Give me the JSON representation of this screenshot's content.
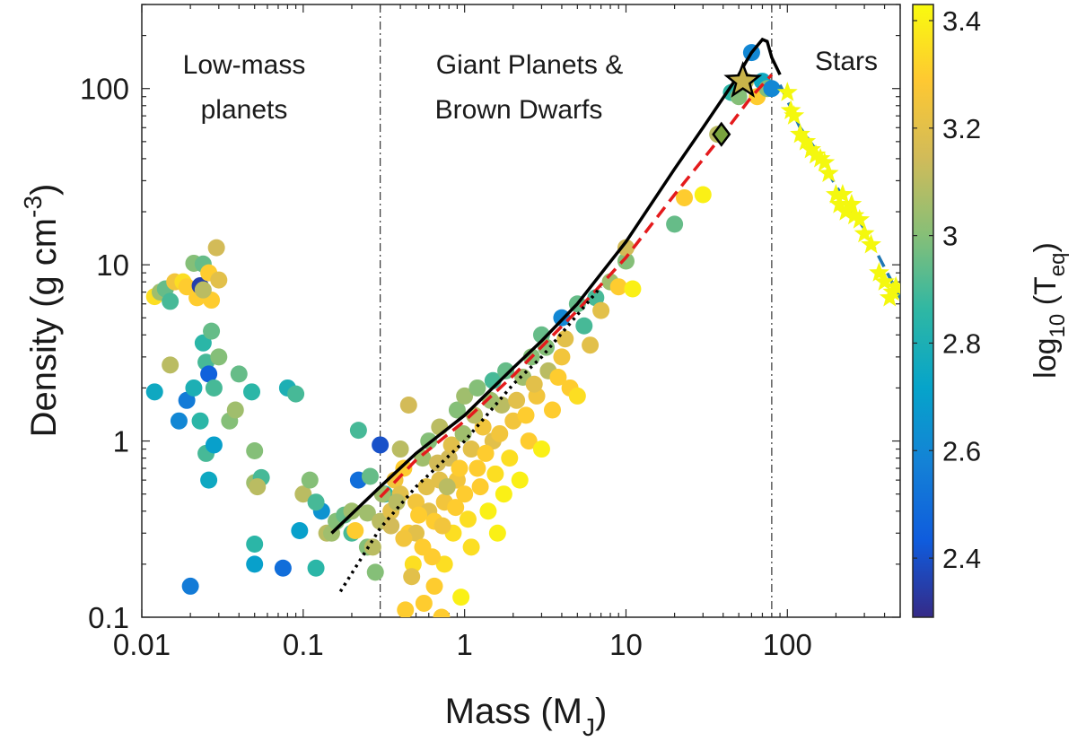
{
  "chart_data": {
    "type": "scatter",
    "xscale": "log",
    "yscale": "log",
    "xlabel_main": "Mass (M",
    "xlabel_sub": "J",
    "xlabel_close": ")",
    "ylabel_main": "Density (g cm",
    "ylabel_sup": "-3",
    "ylabel_close": ")",
    "xlim": [
      0.01,
      500
    ],
    "ylim": [
      0.1,
      300
    ],
    "x_ticks": [
      {
        "value": 0.01,
        "label": "0.01"
      },
      {
        "value": 0.1,
        "label": "0.1"
      },
      {
        "value": 1,
        "label": "1"
      },
      {
        "value": 10,
        "label": "10"
      },
      {
        "value": 100,
        "label": "100"
      }
    ],
    "y_ticks": [
      {
        "value": 0.1,
        "label": "0.1"
      },
      {
        "value": 1,
        "label": "1"
      },
      {
        "value": 10,
        "label": "10"
      },
      {
        "value": 100,
        "label": "100"
      }
    ],
    "colorbar": {
      "label_main": "log",
      "label_sub1": "10",
      "label_mid": " (T",
      "label_sub2": "eq",
      "label_close": ")",
      "range": [
        2.29,
        3.43
      ],
      "ticks": [
        {
          "value": 2.4,
          "label": "2.4"
        },
        {
          "value": 2.6,
          "label": "2.6"
        },
        {
          "value": 2.8,
          "label": "2.8"
        },
        {
          "value": 3.0,
          "label": "3"
        },
        {
          "value": 3.2,
          "label": "3.2"
        },
        {
          "value": 3.4,
          "label": "3.4"
        }
      ],
      "colormap": [
        "#352a87",
        "#0f5cdd",
        "#1481d6",
        "#06a4ca",
        "#2eb7a4",
        "#87bf77",
        "#d1bb59",
        "#fec832",
        "#f9fb0e"
      ]
    },
    "region_labels": {
      "low_mass_line1": "Low-mass",
      "low_mass_line2": "planets",
      "giant_line1": "Giant Planets &",
      "giant_line2": "Brown Dwarfs",
      "stars": "Stars"
    },
    "boundaries": [
      0.3,
      80
    ],
    "planets": [
      [
        0.012,
        6.6,
        3.35
      ],
      [
        0.013,
        7.0,
        3.05
      ],
      [
        0.014,
        7.3,
        2.95
      ],
      [
        0.015,
        6.2,
        2.9
      ],
      [
        0.016,
        8.0,
        3.25
      ],
      [
        0.018,
        8.0,
        3.35
      ],
      [
        0.019,
        7.5,
        3.3
      ],
      [
        0.021,
        10.2,
        3.0
      ],
      [
        0.022,
        6.5,
        3.3
      ],
      [
        0.023,
        7.6,
        2.35
      ],
      [
        0.024,
        10.1,
        2.95
      ],
      [
        0.026,
        9.0,
        3.3
      ],
      [
        0.027,
        6.3,
        3.3
      ],
      [
        0.029,
        12.5,
        3.15
      ],
      [
        0.03,
        8.2,
        3.2
      ],
      [
        0.024,
        7.2,
        3.1
      ],
      [
        0.012,
        1.9,
        2.75
      ],
      [
        0.015,
        2.7,
        3.1
      ],
      [
        0.017,
        1.3,
        2.6
      ],
      [
        0.019,
        1.7,
        2.55
      ],
      [
        0.021,
        2.0,
        2.8
      ],
      [
        0.023,
        1.3,
        2.85
      ],
      [
        0.024,
        3.6,
        2.85
      ],
      [
        0.025,
        2.8,
        2.9
      ],
      [
        0.026,
        2.4,
        2.45
      ],
      [
        0.027,
        4.2,
        2.95
      ],
      [
        0.028,
        2.0,
        2.9
      ],
      [
        0.03,
        3.0,
        3.0
      ],
      [
        0.035,
        1.3,
        3.0
      ],
      [
        0.038,
        1.5,
        3.05
      ],
      [
        0.04,
        2.4,
        2.95
      ],
      [
        0.048,
        1.9,
        2.85
      ],
      [
        0.025,
        0.85,
        2.9
      ],
      [
        0.028,
        0.95,
        2.7
      ],
      [
        0.026,
        0.6,
        2.75
      ],
      [
        0.05,
        0.58,
        3.05
      ],
      [
        0.05,
        0.88,
        3.0
      ],
      [
        0.055,
        0.62,
        2.9
      ],
      [
        0.052,
        0.55,
        3.1
      ],
      [
        0.05,
        0.26,
        2.85
      ],
      [
        0.05,
        0.2,
        2.7
      ],
      [
        0.075,
        0.19,
        2.5
      ],
      [
        0.08,
        2.0,
        2.8
      ],
      [
        0.09,
        1.85,
        2.9
      ],
      [
        0.095,
        0.31,
        2.7
      ],
      [
        0.1,
        0.5,
        3.1
      ],
      [
        0.11,
        0.6,
        3.0
      ],
      [
        0.12,
        0.19,
        2.85
      ],
      [
        0.13,
        0.4,
        2.65
      ],
      [
        0.12,
        0.45,
        2.9
      ],
      [
        0.02,
        0.15,
        2.55
      ],
      [
        0.14,
        0.3,
        3.1
      ],
      [
        0.15,
        0.3,
        3.05
      ],
      [
        0.16,
        0.35,
        3.0
      ],
      [
        0.18,
        0.38,
        2.95
      ],
      [
        0.2,
        0.4,
        3.05
      ],
      [
        0.2,
        0.3,
        2.9
      ],
      [
        0.22,
        0.6,
        2.5
      ],
      [
        0.22,
        1.15,
        2.9
      ],
      [
        0.25,
        0.25,
        3.0
      ],
      [
        0.25,
        0.39,
        3.05
      ],
      [
        0.26,
        0.63,
        2.95
      ],
      [
        0.27,
        0.25,
        3.1
      ],
      [
        0.28,
        0.18,
        3.0
      ],
      [
        0.3,
        0.95,
        2.4
      ],
      [
        0.32,
        0.5,
        2.85
      ],
      [
        0.3,
        0.35,
        3.1
      ],
      [
        0.35,
        0.4,
        3.2
      ],
      [
        0.37,
        0.6,
        3.25
      ],
      [
        0.4,
        0.5,
        3.2
      ],
      [
        0.4,
        0.9,
        3.1
      ],
      [
        0.42,
        0.7,
        3.3
      ],
      [
        0.45,
        1.6,
        3.15
      ],
      [
        0.45,
        0.3,
        3.3
      ],
      [
        0.48,
        0.2,
        3.35
      ],
      [
        0.5,
        0.45,
        3.25
      ],
      [
        0.5,
        0.3,
        3.2
      ],
      [
        0.55,
        0.25,
        3.3
      ],
      [
        0.55,
        0.8,
        3.05
      ],
      [
        0.6,
        1.0,
        3.0
      ],
      [
        0.6,
        0.4,
        3.2
      ],
      [
        0.65,
        0.35,
        3.3
      ],
      [
        0.65,
        0.15,
        3.3
      ],
      [
        0.7,
        0.6,
        3.2
      ],
      [
        0.7,
        1.2,
        3.1
      ],
      [
        0.75,
        0.2,
        3.35
      ],
      [
        0.75,
        0.45,
        3.25
      ],
      [
        0.8,
        0.8,
        3.15
      ],
      [
        0.85,
        0.3,
        3.35
      ],
      [
        0.9,
        1.5,
        3.0
      ],
      [
        0.9,
        0.6,
        3.25
      ],
      [
        0.95,
        0.13,
        3.4
      ],
      [
        1.0,
        0.5,
        3.3
      ],
      [
        1.0,
        1.8,
        3.05
      ],
      [
        1.1,
        0.9,
        3.2
      ],
      [
        1.1,
        0.25,
        3.35
      ],
      [
        1.2,
        2.0,
        3.0
      ],
      [
        1.2,
        0.7,
        3.3
      ],
      [
        1.3,
        1.2,
        3.25
      ],
      [
        1.4,
        0.4,
        3.4
      ],
      [
        1.5,
        2.2,
        2.9
      ],
      [
        1.5,
        1.0,
        3.2
      ],
      [
        1.6,
        0.3,
        3.4
      ],
      [
        1.7,
        1.6,
        3.1
      ],
      [
        1.8,
        2.5,
        2.95
      ],
      [
        1.9,
        0.8,
        3.35
      ],
      [
        2.0,
        1.3,
        3.25
      ],
      [
        2.2,
        0.6,
        3.4
      ],
      [
        2.3,
        2.3,
        3.05
      ],
      [
        2.5,
        1.0,
        3.3
      ],
      [
        2.6,
        3.0,
        3.0
      ],
      [
        2.8,
        1.8,
        3.25
      ],
      [
        3.0,
        0.9,
        3.4
      ],
      [
        3.0,
        4.0,
        2.95
      ],
      [
        3.3,
        2.5,
        3.1
      ],
      [
        3.5,
        1.5,
        3.3
      ],
      [
        4.0,
        5.0,
        2.6
      ],
      [
        4.0,
        3.0,
        3.25
      ],
      [
        4.5,
        2.0,
        3.3
      ],
      [
        5.0,
        1.8,
        3.35
      ],
      [
        5.0,
        6.0,
        2.95
      ],
      [
        5.5,
        4.5,
        2.9
      ],
      [
        6.0,
        3.5,
        3.2
      ],
      [
        0.31,
        0.5,
        3.05
      ],
      [
        0.35,
        0.33,
        3.15
      ],
      [
        0.38,
        0.45,
        3.1
      ],
      [
        0.42,
        0.28,
        3.25
      ],
      [
        0.43,
        0.11,
        3.3
      ],
      [
        0.47,
        0.17,
        3.2
      ],
      [
        0.52,
        0.38,
        3.3
      ],
      [
        0.58,
        0.55,
        3.2
      ],
      [
        0.63,
        0.22,
        3.3
      ],
      [
        0.68,
        0.75,
        3.15
      ],
      [
        0.73,
        0.33,
        3.25
      ],
      [
        0.78,
        0.55,
        3.1
      ],
      [
        0.83,
        0.95,
        3.2
      ],
      [
        0.88,
        0.42,
        3.3
      ],
      [
        0.93,
        0.7,
        3.3
      ],
      [
        0.98,
        1.1,
        3.05
      ],
      [
        1.05,
        0.36,
        3.35
      ],
      [
        1.15,
        1.4,
        3.1
      ],
      [
        1.25,
        0.55,
        3.3
      ],
      [
        1.35,
        0.85,
        3.3
      ],
      [
        1.45,
        1.7,
        3.05
      ],
      [
        1.55,
        0.65,
        3.35
      ],
      [
        1.65,
        1.1,
        3.25
      ],
      [
        1.75,
        0.5,
        3.4
      ],
      [
        2.1,
        1.7,
        3.2
      ],
      [
        2.4,
        1.4,
        3.3
      ],
      [
        2.7,
        2.1,
        3.2
      ],
      [
        3.2,
        3.4,
        3.0
      ],
      [
        3.8,
        2.3,
        3.3
      ],
      [
        4.2,
        3.8,
        3.2
      ],
      [
        0.72,
        0.1,
        3.3
      ],
      [
        0.56,
        0.12,
        3.3
      ],
      [
        6.5,
        6.5,
        2.9
      ],
      [
        7.0,
        5.5,
        3.2
      ],
      [
        8.0,
        8.0,
        3.05
      ],
      [
        9.0,
        7.5,
        3.3
      ],
      [
        10.0,
        10.5,
        3.0
      ],
      [
        10.0,
        12.5,
        3.15
      ],
      [
        11.0,
        7.3,
        3.4
      ],
      [
        20.0,
        17.0,
        2.95
      ],
      [
        23.0,
        24.0,
        3.3
      ],
      [
        30.0,
        25.0,
        3.4
      ],
      [
        37.0,
        55.0,
        3.1
      ],
      [
        45.0,
        95.0,
        2.85
      ],
      [
        50.0,
        90.0,
        3.0
      ],
      [
        55.0,
        110.0,
        3.1
      ],
      [
        60.0,
        160.0,
        2.6
      ],
      [
        65.0,
        90.0,
        3.3
      ],
      [
        70.0,
        110.0,
        2.75
      ],
      [
        75.0,
        100.0,
        3.0
      ],
      [
        80.0,
        100.0,
        2.6
      ],
      [
        0.21,
        0.31,
        3.3
      ]
    ],
    "stars": [
      [
        100,
        95
      ],
      [
        105,
        75
      ],
      [
        110,
        70
      ],
      [
        120,
        55
      ],
      [
        130,
        50
      ],
      [
        140,
        45
      ],
      [
        150,
        42
      ],
      [
        160,
        40
      ],
      [
        170,
        38
      ],
      [
        180,
        33
      ],
      [
        200,
        25
      ],
      [
        210,
        22
      ],
      [
        220,
        25
      ],
      [
        230,
        20
      ],
      [
        250,
        22
      ],
      [
        260,
        19
      ],
      [
        280,
        18
      ],
      [
        300,
        15
      ],
      [
        330,
        13
      ],
      [
        370,
        9
      ],
      [
        400,
        8
      ],
      [
        450,
        7
      ],
      [
        430,
        6.5
      ],
      [
        470,
        7.5
      ]
    ],
    "black_solid_curve": [
      [
        0.15,
        0.3
      ],
      [
        0.3,
        0.55
      ],
      [
        0.5,
        0.85
      ],
      [
        1,
        1.4
      ],
      [
        2,
        2.6
      ],
      [
        3,
        3.7
      ],
      [
        5,
        6.0
      ],
      [
        10,
        13.5
      ],
      [
        20,
        35
      ],
      [
        30,
        60
      ],
      [
        50,
        120
      ],
      [
        55,
        140
      ],
      [
        60,
        160
      ],
      [
        70,
        190
      ],
      [
        75,
        185
      ],
      [
        80,
        150
      ],
      [
        90,
        120
      ]
    ],
    "black_dotted_curve": [
      [
        0.17,
        0.14
      ],
      [
        0.3,
        0.32
      ],
      [
        0.5,
        0.55
      ],
      [
        1,
        1.0
      ],
      [
        2,
        2.1
      ],
      [
        3,
        3.0
      ],
      [
        5,
        5.2
      ],
      [
        7,
        7.5
      ]
    ],
    "red_dashed_curve": [
      [
        0.3,
        0.48
      ],
      [
        0.5,
        0.78
      ],
      [
        1,
        1.3
      ],
      [
        2,
        2.35
      ],
      [
        5,
        5.5
      ],
      [
        10,
        11.0
      ],
      [
        20,
        25
      ],
      [
        40,
        55
      ],
      [
        60,
        90
      ],
      [
        80,
        120
      ]
    ],
    "blue_dashed_curve": [
      [
        90,
        105
      ],
      [
        120,
        60
      ],
      [
        150,
        45
      ],
      [
        200,
        28
      ],
      [
        300,
        16
      ],
      [
        500,
        6.5
      ]
    ],
    "special_markers": {
      "star": [
        53,
        110
      ],
      "diamond": [
        39,
        55
      ]
    }
  }
}
